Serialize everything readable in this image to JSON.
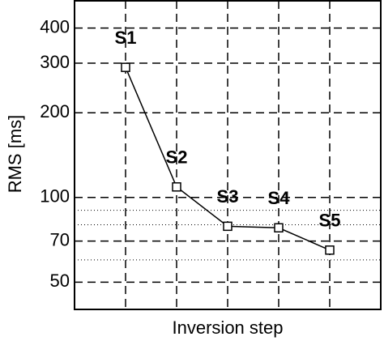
{
  "chart_data": {
    "type": "line",
    "y_label": "RMS [ms]",
    "x_label": "Inversion step",
    "categories": [
      "S1",
      "S2",
      "S3",
      "S4",
      "S5"
    ],
    "x": [
      1,
      2,
      3,
      4,
      5
    ],
    "values": [
      290,
      109,
      79,
      78,
      65
    ],
    "color": "#000000",
    "xlim": [
      0,
      6
    ],
    "xticks": [
      1,
      2,
      3,
      4,
      5
    ],
    "ylim": [
      40,
      500
    ],
    "log_y": true,
    "yticks": [
      50,
      70,
      100,
      200,
      300,
      400
    ],
    "minor_yticks": [
      60,
      80,
      90
    ],
    "grid": true
  }
}
